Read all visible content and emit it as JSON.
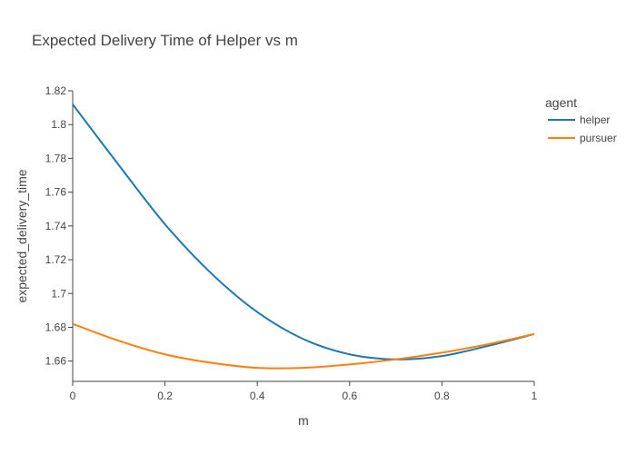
{
  "chart_data": {
    "type": "line",
    "title": "Expected Delivery Time of Helper vs m",
    "xlabel": "m",
    "ylabel": "expected_delivery_time",
    "xlim": [
      0,
      1
    ],
    "ylim": [
      1.648,
      1.82
    ],
    "xticks": [
      0,
      0.2,
      0.4,
      0.6,
      0.8,
      1
    ],
    "xtick_labels": [
      "0",
      "0.2",
      "0.4",
      "0.6",
      "0.8",
      "1"
    ],
    "yticks": [
      1.66,
      1.68,
      1.7,
      1.72,
      1.74,
      1.76,
      1.78,
      1.8,
      1.82
    ],
    "ytick_labels": [
      "1.66",
      "1.68",
      "1.7",
      "1.72",
      "1.74",
      "1.76",
      "1.78",
      "1.8",
      "1.82"
    ],
    "grid": false,
    "legend": {
      "title": "agent",
      "position": "top-right"
    },
    "x": [
      0,
      0.1,
      0.2,
      0.3,
      0.4,
      0.5,
      0.6,
      0.7,
      0.8,
      0.9,
      1.0
    ],
    "series": [
      {
        "name": "helper",
        "color": "#1f77b4",
        "values": [
          1.812,
          1.776,
          1.741,
          1.712,
          1.689,
          1.673,
          1.664,
          1.661,
          1.663,
          1.669,
          1.676
        ]
      },
      {
        "name": "pursuer",
        "color": "#ff7f0e",
        "values": [
          1.682,
          1.672,
          1.664,
          1.659,
          1.656,
          1.656,
          1.658,
          1.661,
          1.665,
          1.67,
          1.676
        ]
      }
    ]
  }
}
